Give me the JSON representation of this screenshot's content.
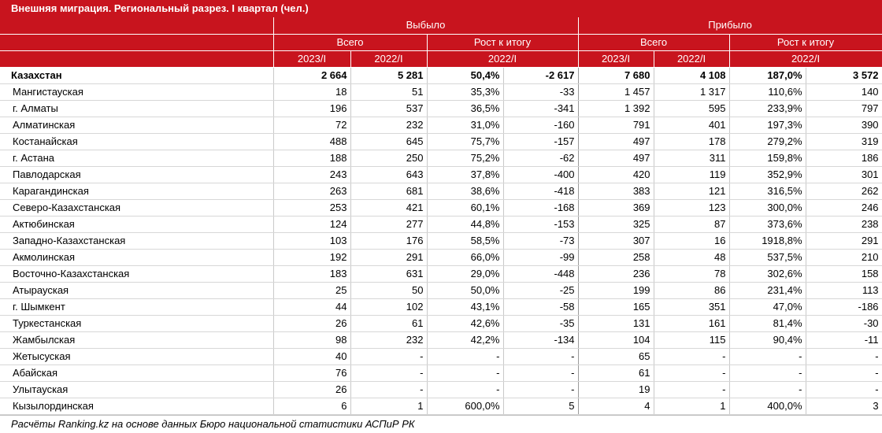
{
  "title": "Внешняя миграция. Региональный разрез. I квартал (чел.)",
  "header": {
    "group_left": "Выбыло",
    "group_right": "Прибыло",
    "total_label": "Всего",
    "growth_label": "Рост к итогу",
    "year_2023": "2023/I",
    "year_2022": "2022/I"
  },
  "rows": [
    {
      "region": "Казахстан",
      "out_2023": "2 664",
      "out_2022": "5 281",
      "out_pct": "50,4%",
      "out_diff": "-2 617",
      "in_2023": "7 680",
      "in_2022": "4 108",
      "in_pct": "187,0%",
      "in_diff": "3 572"
    },
    {
      "region": "Мангистауская",
      "out_2023": "18",
      "out_2022": "51",
      "out_pct": "35,3%",
      "out_diff": "-33",
      "in_2023": "1 457",
      "in_2022": "1 317",
      "in_pct": "110,6%",
      "in_diff": "140"
    },
    {
      "region": "г. Алматы",
      "out_2023": "196",
      "out_2022": "537",
      "out_pct": "36,5%",
      "out_diff": "-341",
      "in_2023": "1 392",
      "in_2022": "595",
      "in_pct": "233,9%",
      "in_diff": "797"
    },
    {
      "region": "Алматинская",
      "out_2023": "72",
      "out_2022": "232",
      "out_pct": "31,0%",
      "out_diff": "-160",
      "in_2023": "791",
      "in_2022": "401",
      "in_pct": "197,3%",
      "in_diff": "390"
    },
    {
      "region": "Костанайская",
      "out_2023": "488",
      "out_2022": "645",
      "out_pct": "75,7%",
      "out_diff": "-157",
      "in_2023": "497",
      "in_2022": "178",
      "in_pct": "279,2%",
      "in_diff": "319"
    },
    {
      "region": "г. Астана",
      "out_2023": "188",
      "out_2022": "250",
      "out_pct": "75,2%",
      "out_diff": "-62",
      "in_2023": "497",
      "in_2022": "311",
      "in_pct": "159,8%",
      "in_diff": "186"
    },
    {
      "region": "Павлодарская",
      "out_2023": "243",
      "out_2022": "643",
      "out_pct": "37,8%",
      "out_diff": "-400",
      "in_2023": "420",
      "in_2022": "119",
      "in_pct": "352,9%",
      "in_diff": "301"
    },
    {
      "region": "Карагандинская",
      "out_2023": "263",
      "out_2022": "681",
      "out_pct": "38,6%",
      "out_diff": "-418",
      "in_2023": "383",
      "in_2022": "121",
      "in_pct": "316,5%",
      "in_diff": "262"
    },
    {
      "region": "Северо-Казахстанская",
      "out_2023": "253",
      "out_2022": "421",
      "out_pct": "60,1%",
      "out_diff": "-168",
      "in_2023": "369",
      "in_2022": "123",
      "in_pct": "300,0%",
      "in_diff": "246"
    },
    {
      "region": "Актюбинская",
      "out_2023": "124",
      "out_2022": "277",
      "out_pct": "44,8%",
      "out_diff": "-153",
      "in_2023": "325",
      "in_2022": "87",
      "in_pct": "373,6%",
      "in_diff": "238"
    },
    {
      "region": "Западно-Казахстанская",
      "out_2023": "103",
      "out_2022": "176",
      "out_pct": "58,5%",
      "out_diff": "-73",
      "in_2023": "307",
      "in_2022": "16",
      "in_pct": "1918,8%",
      "in_diff": "291"
    },
    {
      "region": "Акмолинская",
      "out_2023": "192",
      "out_2022": "291",
      "out_pct": "66,0%",
      "out_diff": "-99",
      "in_2023": "258",
      "in_2022": "48",
      "in_pct": "537,5%",
      "in_diff": "210"
    },
    {
      "region": "Восточно-Казахстанская",
      "out_2023": "183",
      "out_2022": "631",
      "out_pct": "29,0%",
      "out_diff": "-448",
      "in_2023": "236",
      "in_2022": "78",
      "in_pct": "302,6%",
      "in_diff": "158"
    },
    {
      "region": "Атырауская",
      "out_2023": "25",
      "out_2022": "50",
      "out_pct": "50,0%",
      "out_diff": "-25",
      "in_2023": "199",
      "in_2022": "86",
      "in_pct": "231,4%",
      "in_diff": "113"
    },
    {
      "region": "г. Шымкент",
      "out_2023": "44",
      "out_2022": "102",
      "out_pct": "43,1%",
      "out_diff": "-58",
      "in_2023": "165",
      "in_2022": "351",
      "in_pct": "47,0%",
      "in_diff": "-186"
    },
    {
      "region": "Туркестанская",
      "out_2023": "26",
      "out_2022": "61",
      "out_pct": "42,6%",
      "out_diff": "-35",
      "in_2023": "131",
      "in_2022": "161",
      "in_pct": "81,4%",
      "in_diff": "-30"
    },
    {
      "region": "Жамбылская",
      "out_2023": "98",
      "out_2022": "232",
      "out_pct": "42,2%",
      "out_diff": "-134",
      "in_2023": "104",
      "in_2022": "115",
      "in_pct": "90,4%",
      "in_diff": "-11"
    },
    {
      "region": "Жетысуская",
      "out_2023": "40",
      "out_2022": "-",
      "out_pct": "-",
      "out_diff": "-",
      "in_2023": "65",
      "in_2022": "-",
      "in_pct": "-",
      "in_diff": "-"
    },
    {
      "region": "Абайская",
      "out_2023": "76",
      "out_2022": "-",
      "out_pct": "-",
      "out_diff": "-",
      "in_2023": "61",
      "in_2022": "-",
      "in_pct": "-",
      "in_diff": "-"
    },
    {
      "region": "Улытауская",
      "out_2023": "26",
      "out_2022": "-",
      "out_pct": "-",
      "out_diff": "-",
      "in_2023": "19",
      "in_2022": "-",
      "in_pct": "-",
      "in_diff": "-"
    },
    {
      "region": "Кызылординская",
      "out_2023": "6",
      "out_2022": "1",
      "out_pct": "600,0%",
      "out_diff": "5",
      "in_2023": "4",
      "in_2022": "1",
      "in_pct": "400,0%",
      "in_diff": "3"
    }
  ],
  "footer": "Расчёты Ranking.kz на основе данных Бюро национальной статистики АСПиР РК"
}
